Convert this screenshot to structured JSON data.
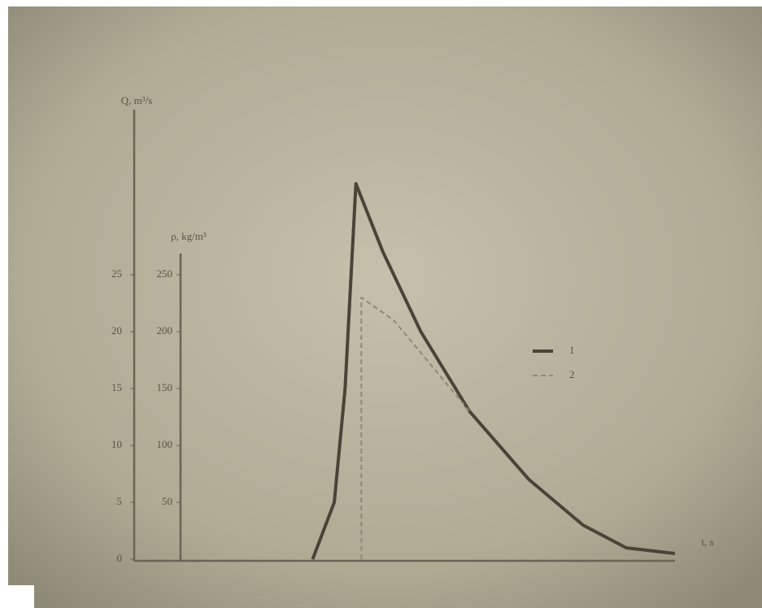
{
  "chart_data": {
    "type": "line",
    "y_label": "Q, m³/s",
    "y2_label": "ρ, kg/m³",
    "x_label": "t, s",
    "xlim": [
      0,
      10
    ],
    "ylim": [
      0,
      33
    ],
    "yticks": [
      0,
      5,
      10,
      15,
      20,
      25
    ],
    "y2lim": [
      0,
      330
    ],
    "y2ticks": [
      50,
      100,
      150,
      200,
      250
    ],
    "series": [
      {
        "name": "1",
        "color": "#4a4438",
        "dash": false,
        "x": [
          3.3,
          3.7,
          3.9,
          4.1,
          4.6,
          5.3,
          6.2,
          7.3,
          8.3,
          9.1,
          10
        ],
        "values": [
          0,
          5,
          15,
          33,
          27,
          20,
          13,
          7,
          3,
          1,
          0.5
        ]
      },
      {
        "name": "2",
        "color": "#8f8a78",
        "dash": true,
        "x": [
          4.2,
          4.2,
          4.8,
          5.5,
          6.2
        ],
        "values": [
          0,
          23,
          21,
          17,
          13
        ]
      }
    ]
  }
}
